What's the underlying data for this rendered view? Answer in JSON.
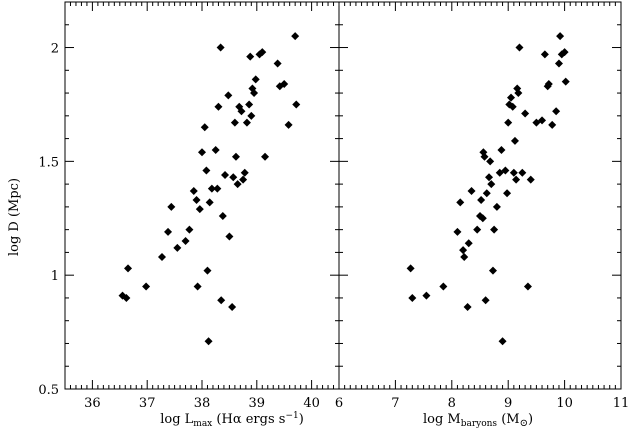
{
  "chart_data": [
    {
      "type": "scatter",
      "panel": "left",
      "xlabel_parts": {
        "base": "log L",
        "sub": "max",
        "after_sub": " (H",
        "greek": "α",
        "after_greek": " ergs s",
        "sup": "−1",
        "close": ")"
      },
      "ylabel": "log D (Mpc)",
      "xlim": [
        35.5,
        40.5
      ],
      "ylim": [
        0.5,
        2.2
      ],
      "x_ticks_major": [
        36,
        37,
        38,
        39,
        40
      ],
      "x_ticks_minor": [
        35.6,
        35.7,
        35.8,
        35.9,
        36.1,
        36.2,
        36.3,
        36.4,
        36.5,
        36.6,
        36.7,
        36.8,
        36.9,
        37.1,
        37.2,
        37.3,
        37.4,
        37.5,
        37.6,
        37.7,
        37.8,
        37.9,
        38.1,
        38.2,
        38.3,
        38.4,
        38.5,
        38.6,
        38.7,
        38.8,
        38.9,
        39.1,
        39.2,
        39.3,
        39.4,
        39.5,
        39.6,
        39.7,
        39.8,
        39.9,
        40.1,
        40.2,
        40.3,
        40.4
      ],
      "y_ticks_major": [
        0.5,
        1,
        1.5,
        2
      ],
      "y_tick_labels": [
        "0.5",
        "1",
        "1.5",
        "2"
      ],
      "y_ticks_minor": [
        0.6,
        0.7,
        0.8,
        0.9,
        1.1,
        1.2,
        1.3,
        1.4,
        1.6,
        1.7,
        1.8,
        1.9,
        2.1
      ],
      "x": [
        36.55,
        36.62,
        36.65,
        36.98,
        37.27,
        37.38,
        37.44,
        37.55,
        37.7,
        37.77,
        37.85,
        37.9,
        37.92,
        37.96,
        38.0,
        38.05,
        38.08,
        38.1,
        38.12,
        38.14,
        38.18,
        38.25,
        38.28,
        38.3,
        38.34,
        38.35,
        38.38,
        38.42,
        38.48,
        38.5,
        38.55,
        38.57,
        38.6,
        38.62,
        38.65,
        38.68,
        38.72,
        38.75,
        38.78,
        38.82,
        38.86,
        38.88,
        38.9,
        38.92,
        38.95,
        38.98,
        39.05,
        39.1,
        39.15,
        39.38,
        39.42,
        39.5,
        39.58,
        39.7,
        39.72
      ],
      "y": [
        0.91,
        0.9,
        1.03,
        0.95,
        1.08,
        1.19,
        1.3,
        1.12,
        1.15,
        1.2,
        1.37,
        1.33,
        0.95,
        1.29,
        1.54,
        1.65,
        1.46,
        1.02,
        0.71,
        1.32,
        1.38,
        1.55,
        1.38,
        1.74,
        2.0,
        0.89,
        1.26,
        1.44,
        1.79,
        1.17,
        0.86,
        1.43,
        1.67,
        1.52,
        1.4,
        1.74,
        1.72,
        1.42,
        1.45,
        1.67,
        1.75,
        1.96,
        1.7,
        1.82,
        1.8,
        1.86,
        1.97,
        1.98,
        1.52,
        1.93,
        1.83,
        1.84,
        1.66,
        2.05,
        1.75
      ]
    },
    {
      "type": "scatter",
      "panel": "right",
      "xlabel_parts": {
        "base": "log M",
        "sub": "baryons",
        "after_sub": " (M",
        "sun": "⊙",
        "close": ")"
      },
      "xlim": [
        6,
        11
      ],
      "ylim": [
        0.5,
        2.2
      ],
      "x_ticks_major": [
        6,
        7,
        8,
        9,
        10,
        11
      ],
      "x_ticks_minor": [
        6.1,
        6.2,
        6.3,
        6.4,
        6.5,
        6.6,
        6.7,
        6.8,
        6.9,
        7.1,
        7.2,
        7.3,
        7.4,
        7.5,
        7.6,
        7.7,
        7.8,
        7.9,
        8.1,
        8.2,
        8.3,
        8.4,
        8.5,
        8.6,
        8.7,
        8.8,
        8.9,
        9.1,
        9.2,
        9.3,
        9.4,
        9.5,
        9.6,
        9.7,
        9.8,
        9.9,
        10.1,
        10.2,
        10.3,
        10.4,
        10.5,
        10.6,
        10.7,
        10.8,
        10.9
      ],
      "y_ticks_major": [
        0.5,
        1,
        1.5,
        2
      ],
      "y_ticks_minor": [
        0.6,
        0.7,
        0.8,
        0.9,
        1.1,
        1.2,
        1.3,
        1.4,
        1.6,
        1.7,
        1.8,
        1.9,
        2.1
      ],
      "x": [
        7.27,
        7.3,
        7.55,
        7.85,
        8.1,
        8.15,
        8.2,
        8.22,
        8.28,
        8.3,
        8.35,
        8.45,
        8.5,
        8.52,
        8.55,
        8.56,
        8.58,
        8.6,
        8.62,
        8.66,
        8.68,
        8.7,
        8.73,
        8.75,
        8.8,
        8.85,
        8.88,
        8.9,
        8.95,
        8.98,
        9.0,
        9.02,
        9.05,
        9.08,
        9.1,
        9.12,
        9.14,
        9.16,
        9.18,
        9.2,
        9.25,
        9.3,
        9.35,
        9.4,
        9.5,
        9.6,
        9.65,
        9.7,
        9.72,
        9.78,
        9.85,
        9.9,
        9.92,
        9.95,
        10.0,
        10.02
      ],
      "y": [
        1.03,
        0.9,
        0.91,
        0.95,
        1.19,
        1.32,
        1.11,
        1.08,
        0.86,
        1.14,
        1.37,
        1.2,
        1.26,
        1.33,
        1.25,
        1.54,
        1.52,
        0.89,
        1.36,
        1.43,
        1.5,
        1.4,
        1.02,
        1.2,
        1.3,
        1.45,
        1.55,
        0.71,
        1.46,
        1.36,
        1.67,
        1.75,
        1.78,
        1.74,
        1.45,
        1.59,
        1.42,
        1.82,
        1.8,
        2.0,
        1.45,
        1.71,
        0.95,
        1.42,
        1.67,
        1.68,
        1.97,
        1.83,
        1.84,
        1.66,
        1.72,
        1.93,
        2.05,
        1.97,
        1.98,
        1.85
      ]
    }
  ]
}
